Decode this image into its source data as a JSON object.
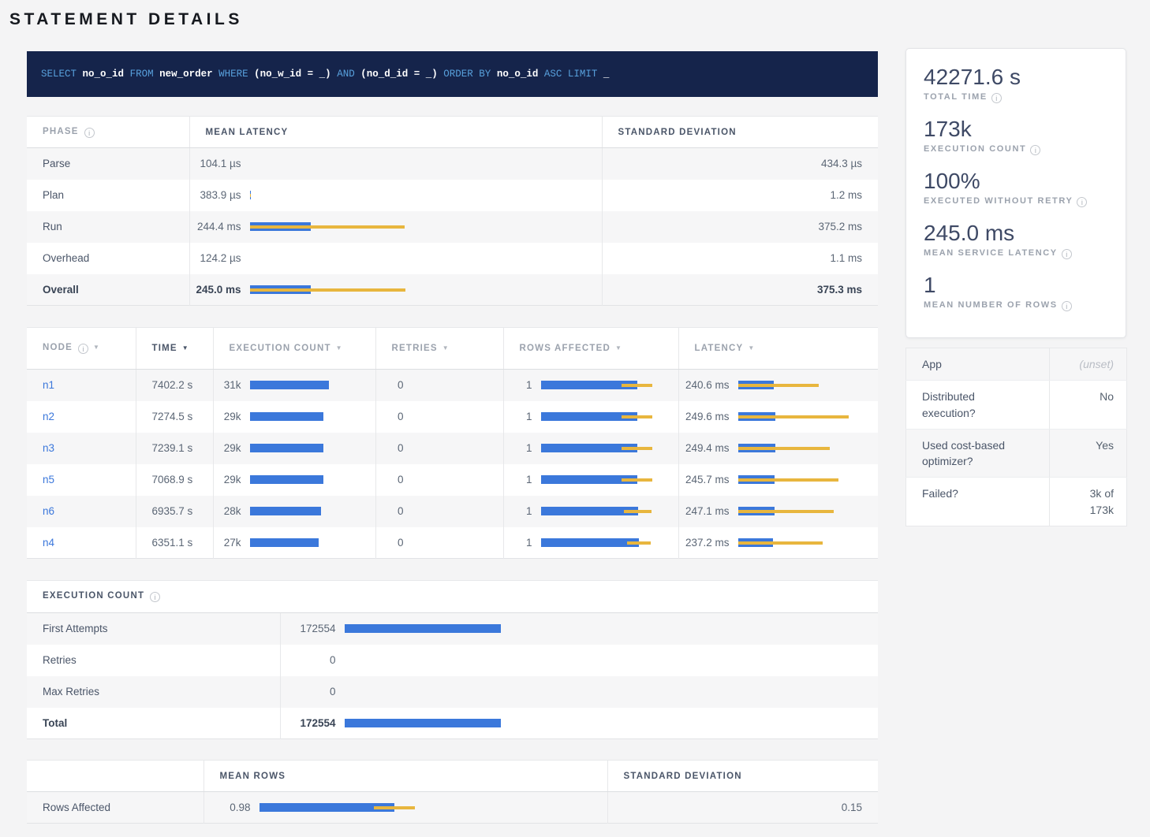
{
  "page": {
    "title": "STATEMENT DETAILS"
  },
  "colors": {
    "bar_blue": "#3b78db",
    "bar_yellow": "#e8b63e",
    "link_blue": "#3b77db",
    "sql_background": "#15244b",
    "sql_keyword": "#58a0dc"
  },
  "sql": {
    "tokens": [
      {
        "text": "SELECT",
        "type": "keyword"
      },
      {
        "text": "no_o_id",
        "type": "ident"
      },
      {
        "text": "FROM",
        "type": "keyword"
      },
      {
        "text": "new_order",
        "type": "ident"
      },
      {
        "text": "WHERE",
        "type": "keyword"
      },
      {
        "text": "(no_w_id = _)",
        "type": "ident"
      },
      {
        "text": "AND",
        "type": "keyword"
      },
      {
        "text": "(no_d_id = _)",
        "type": "ident"
      },
      {
        "text": "ORDER BY",
        "type": "keyword"
      },
      {
        "text": "no_o_id",
        "type": "ident"
      },
      {
        "text": "ASC LIMIT",
        "type": "keyword"
      },
      {
        "text": "_",
        "type": "ident"
      }
    ]
  },
  "phase_table": {
    "columns": [
      {
        "label": "PHASE",
        "info": true,
        "dark": false
      },
      {
        "label": "MEAN LATENCY",
        "dark": true
      },
      {
        "label": "STANDARD DEVIATION",
        "dark": true
      }
    ],
    "bar_max_ms": 620.3,
    "rows": [
      {
        "phase": "Parse",
        "mean_text": "104.1 µs",
        "mean_ms": 0.1041,
        "sd_ms": 0.4343,
        "sd_text": "434.3 µs",
        "bold": false
      },
      {
        "phase": "Plan",
        "mean_text": "383.9 µs",
        "mean_ms": 0.3839,
        "sd_ms": 1.2,
        "sd_text": "1.2 ms",
        "bold": false
      },
      {
        "phase": "Run",
        "mean_text": "244.4 ms",
        "mean_ms": 244.4,
        "sd_ms": 375.2,
        "sd_text": "375.2 ms",
        "bold": false
      },
      {
        "phase": "Overhead",
        "mean_text": "124.2 µs",
        "mean_ms": 0.1242,
        "sd_ms": 1.1,
        "sd_text": "1.1 ms",
        "bold": false
      },
      {
        "phase": "Overall",
        "mean_text": "245.0 ms",
        "mean_ms": 245.0,
        "sd_ms": 375.3,
        "sd_text": "375.3 ms",
        "bold": true
      }
    ]
  },
  "node_table": {
    "columns": [
      {
        "label": "NODE",
        "info": true,
        "sort": true,
        "dark": false,
        "active": false
      },
      {
        "label": "TIME",
        "sort": true,
        "dark": true,
        "active": true
      },
      {
        "label": "EXECUTION COUNT",
        "sort": true,
        "dark": false,
        "active": false
      },
      {
        "label": "RETRIES",
        "sort": true,
        "dark": false,
        "active": false
      },
      {
        "label": "ROWS AFFECTED",
        "sort": true,
        "dark": false,
        "active": false
      },
      {
        "label": "LATENCY",
        "sort": true,
        "dark": false,
        "active": false
      }
    ],
    "rows": [
      {
        "node": "n1",
        "time": "7402.2 s",
        "exec_text": "31k",
        "exec": 31000,
        "retries": "0",
        "rows_text": "1",
        "rows_mean": 0.98,
        "rows_sd": 0.16,
        "latency_text": "240.6 ms",
        "latency_mean": 240.6,
        "latency_sd": 300
      },
      {
        "node": "n2",
        "time": "7274.5 s",
        "exec_text": "29k",
        "exec": 29000,
        "retries": "0",
        "rows_text": "1",
        "rows_mean": 0.98,
        "rows_sd": 0.16,
        "latency_text": "249.6 ms",
        "latency_mean": 249.6,
        "latency_sd": 490
      },
      {
        "node": "n3",
        "time": "7239.1 s",
        "exec_text": "29k",
        "exec": 29000,
        "retries": "0",
        "rows_text": "1",
        "rows_mean": 0.98,
        "rows_sd": 0.16,
        "latency_text": "249.4 ms",
        "latency_mean": 249.4,
        "latency_sd": 365
      },
      {
        "node": "n5",
        "time": "7068.9 s",
        "exec_text": "29k",
        "exec": 29000,
        "retries": "0",
        "rows_text": "1",
        "rows_mean": 0.98,
        "rows_sd": 0.16,
        "latency_text": "245.7 ms",
        "latency_mean": 245.7,
        "latency_sd": 430
      },
      {
        "node": "n6",
        "time": "6935.7 s",
        "exec_text": "28k",
        "exec": 28000,
        "retries": "0",
        "rows_text": "1",
        "rows_mean": 0.99,
        "rows_sd": 0.14,
        "latency_text": "247.1 ms",
        "latency_mean": 247.1,
        "latency_sd": 395
      },
      {
        "node": "n4",
        "time": "6351.1 s",
        "exec_text": "27k",
        "exec": 27000,
        "retries": "0",
        "rows_text": "1",
        "rows_mean": 1.0,
        "rows_sd": 0.12,
        "latency_text": "237.2 ms",
        "latency_mean": 237.2,
        "latency_sd": 333
      }
    ]
  },
  "execution_count_table": {
    "title": "EXECUTION COUNT",
    "rows": [
      {
        "label": "First Attempts",
        "text": "172554",
        "value": 172554,
        "bold": false
      },
      {
        "label": "Retries",
        "text": "0",
        "value": 0,
        "bold": false
      },
      {
        "label": "Max Retries",
        "text": "0",
        "value": 0,
        "bold": false
      },
      {
        "label": "Total",
        "text": "172554",
        "value": 172554,
        "bold": true
      }
    ]
  },
  "rows_affected_table": {
    "columns": [
      {
        "label": "",
        "dark": false
      },
      {
        "label": "MEAN ROWS",
        "dark": true
      },
      {
        "label": "STANDARD DEVIATION",
        "dark": true
      }
    ],
    "row": {
      "label": "Rows Affected",
      "mean_text": "0.98",
      "mean": 0.98,
      "sd": 0.15,
      "sd_text": "0.15"
    }
  },
  "sidebar": {
    "stats": [
      {
        "value": "42271.6 s",
        "label": "TOTAL TIME",
        "icon": "info-circle"
      },
      {
        "value": "173k",
        "label": "EXECUTION COUNT",
        "icon": "info-circle"
      },
      {
        "value": "100%",
        "label": "EXECUTED WITHOUT RETRY",
        "icon": "info-circle"
      },
      {
        "value": "245.0 ms",
        "label": "MEAN SERVICE LATENCY",
        "icon": "info-circle"
      },
      {
        "value": "1",
        "label": "MEAN NUMBER OF ROWS",
        "icon": "info-circle"
      }
    ],
    "details": [
      {
        "label": "App",
        "value": "(unset)",
        "muted": true
      },
      {
        "label": "Distributed execution?",
        "value": "No",
        "muted": false
      },
      {
        "label": "Used cost-based optimizer?",
        "value": "Yes",
        "muted": false
      },
      {
        "label": "Failed?",
        "value": "3k of 173k",
        "muted": false
      }
    ]
  }
}
